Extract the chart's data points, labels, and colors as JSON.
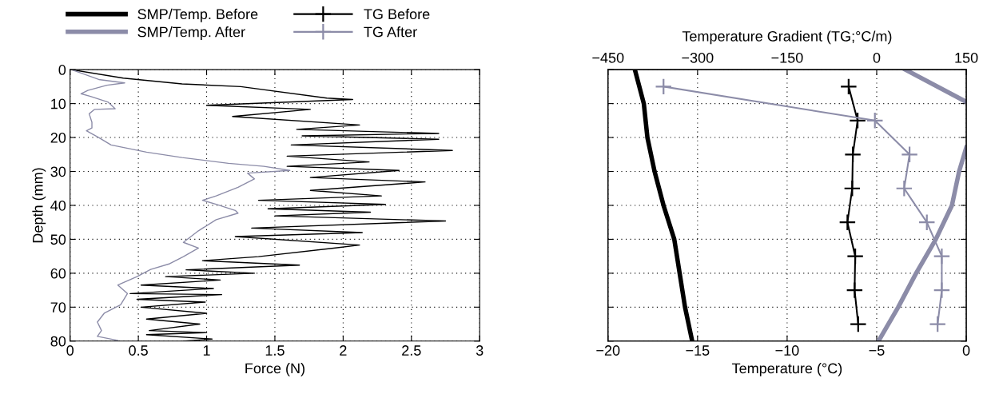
{
  "chart_data": [
    {
      "type": "line",
      "xlabel": "Force (N)",
      "ylabel": "Depth (mm)",
      "xlim": [
        0,
        3
      ],
      "xticks": [
        0,
        0.5,
        1,
        1.5,
        2,
        2.5,
        3
      ],
      "ylim": [
        80,
        0
      ],
      "yticks": [
        0,
        10,
        20,
        30,
        40,
        50,
        60,
        70,
        80
      ],
      "grid": true,
      "legend": "top",
      "series": [
        {
          "name": "SMP/Temp. Before",
          "color": "#000000",
          "x": [
            0.01,
            0.39,
            0.82,
            1.25,
            1.88,
            2.07,
            1.0,
            1.76,
            1.19,
            2.12,
            1.66,
            2.7,
            1.7,
            2.7,
            1.62,
            2.8,
            1.59,
            2.19,
            1.59,
            2.41,
            1.76,
            2.6,
            1.76,
            2.28,
            1.38,
            2.31,
            1.45,
            2.2,
            1.5,
            2.75,
            1.33,
            2.14,
            1.21,
            2.12,
            1.93,
            1.38,
            0.97,
            1.68,
            0.85,
            1.35,
            0.7,
            1.1,
            0.52,
            1.05,
            0.44,
            1.11,
            0.49,
            0.99,
            0.52,
            1.0,
            0.56,
            0.95,
            0.58,
            1.0,
            0.56,
            1.04,
            0.83
          ],
          "values": [
            0,
            2.5,
            4.2,
            5,
            8.4,
            8.8,
            10.5,
            11.7,
            13.8,
            16.3,
            17.6,
            18.8,
            19.5,
            20.5,
            22.2,
            23.8,
            25.5,
            27.2,
            28.5,
            29.7,
            31.8,
            33.1,
            35.6,
            37.2,
            38.5,
            39.7,
            41,
            42,
            43.1,
            44.6,
            46.7,
            48,
            49.2,
            51.7,
            52.6,
            55.1,
            56.3,
            57.6,
            59,
            60,
            61,
            62,
            63.5,
            64.5,
            66,
            66.3,
            67.7,
            68.5,
            70,
            71.8,
            73.5,
            75,
            76.9,
            77.5,
            78.1,
            79.4,
            80
          ]
        },
        {
          "name": "SMP/Temp. After",
          "color": "#8c8ca8",
          "x": [
            0.01,
            0.21,
            0.4,
            0.27,
            0.13,
            0.08,
            0.15,
            0.28,
            0.33,
            0.18,
            0.14,
            0.16,
            0.16,
            0.12,
            0.21,
            0.3,
            0.56,
            0.82,
            1.16,
            1.42,
            1.61,
            1.3,
            1.35,
            1.23,
            1.07,
            0.97,
            1.07,
            1.21,
            1.23,
            1.07,
            0.94,
            0.83,
            0.94,
            0.83,
            0.73,
            0.59,
            0.49,
            0.35,
            0.42,
            0.37,
            0.25,
            0.2,
            0.23,
            0.2,
            0.35
          ],
          "values": [
            0,
            2.9,
            3.9,
            4.6,
            6.1,
            7.1,
            7.9,
            9.6,
            11.5,
            11.7,
            13,
            15.5,
            17.2,
            18,
            20,
            22.2,
            24.3,
            25.9,
            27.6,
            28.5,
            29.7,
            30.5,
            32.2,
            34.7,
            37.2,
            38.5,
            39.7,
            41.5,
            42.3,
            44.2,
            47.5,
            50.9,
            52.6,
            55.1,
            57.2,
            58.9,
            61,
            63.5,
            66,
            69.3,
            71.8,
            74.4,
            76.9,
            78.6,
            79.8
          ]
        }
      ]
    },
    {
      "type": "line",
      "xlabel": "Temperature (°C)",
      "x2label": "Temperature Gradient (TG;°C/m)",
      "xlim": [
        -20,
        0
      ],
      "xticks": [
        -20,
        -15,
        -10,
        -5,
        0
      ],
      "x2lim": [
        -450,
        150
      ],
      "x2ticks": [
        -450,
        -300,
        -150,
        0,
        150
      ],
      "ylim": [
        80,
        0
      ],
      "yticks": [
        0,
        10,
        20,
        30,
        40,
        50,
        60,
        70,
        80
      ],
      "tick_labels": "x",
      "grid": true,
      "legend": "top",
      "series": [
        {
          "name": "SMP/Temp. Before",
          "color": "#000000",
          "x": [
            -18.5,
            -18.0,
            -17.8,
            -17.4,
            -16.9,
            -16.3,
            -16.0,
            -15.7,
            -15.3
          ],
          "values": [
            0,
            10,
            20,
            30,
            40,
            50,
            60,
            70,
            80
          ]
        },
        {
          "name": "SMP/Temp. After",
          "color": "#8c8ca8",
          "x": [
            -3.4,
            0,
            null,
            0,
            -0.4,
            -0.8,
            -1.7,
            -2.8,
            -3.8,
            -4.9
          ],
          "values": [
            0,
            9.5,
            null,
            23,
            30,
            40,
            50,
            60,
            70,
            80
          ]
        },
        {
          "name": "TG Before",
          "color": "#000000",
          "axis": "x2",
          "marker": "cross",
          "x": [
            -47,
            -32,
            -40,
            -41,
            -49,
            -36,
            -37,
            -31
          ],
          "values": [
            5,
            15,
            25,
            35,
            45,
            55,
            65,
            75
          ]
        },
        {
          "name": "TG After",
          "color": "#8c8ca8",
          "axis": "x2",
          "marker": "cross",
          "x": [
            -357,
            -3,
            55,
            46,
            84,
            109,
            109,
            102
          ],
          "values": [
            5,
            15,
            25,
            35,
            45,
            55,
            65,
            75
          ]
        }
      ]
    }
  ]
}
